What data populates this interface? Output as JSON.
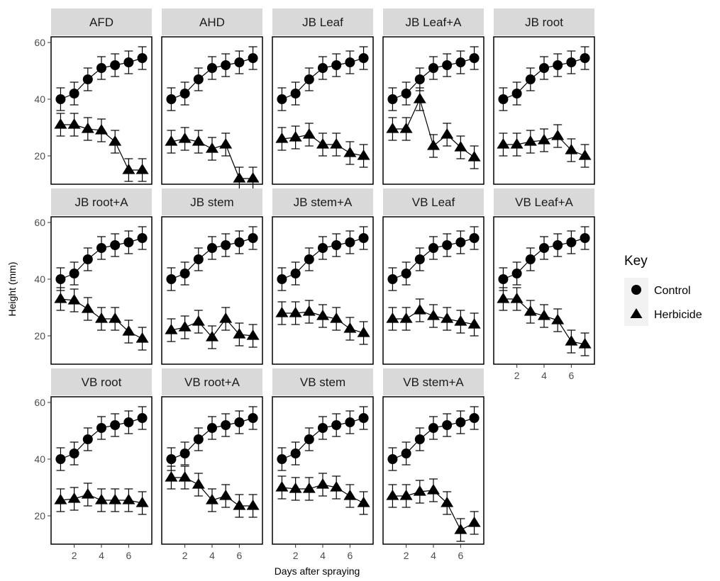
{
  "chart_data": {
    "type": "line",
    "facet_layout": "wrap",
    "xlabel": "Days after spraying",
    "ylabel": "Height (mm)",
    "xlim": [
      0.3,
      7.7
    ],
    "ylim": [
      10,
      62
    ],
    "x_ticks": [
      2,
      4,
      6
    ],
    "y_ticks": [
      20,
      40,
      60
    ],
    "x": [
      1,
      2,
      3,
      4,
      5,
      6,
      7
    ],
    "error_bar": 4,
    "grid": false,
    "legend": {
      "title": "Key",
      "placement": "right",
      "entries": [
        {
          "label": "Control",
          "marker": "circle"
        },
        {
          "label": "Herbicide",
          "marker": "triangle"
        }
      ]
    },
    "control": [
      40,
      42,
      47,
      51,
      52,
      53,
      54.5
    ],
    "panels": [
      {
        "label": "AFD",
        "herbicide": [
          31,
          31,
          29.5,
          29,
          25,
          15,
          15
        ]
      },
      {
        "label": "AHD",
        "herbicide": [
          25,
          26,
          25,
          22.5,
          24,
          12,
          12
        ]
      },
      {
        "label": "JB Leaf",
        "herbicide": [
          26,
          26.5,
          27.5,
          24,
          24,
          21,
          20
        ]
      },
      {
        "label": "JB Leaf+A",
        "herbicide": [
          29.5,
          29.5,
          40,
          23.5,
          27.5,
          23,
          19.5
        ]
      },
      {
        "label": "JB root",
        "herbicide": [
          24,
          24,
          25,
          25.5,
          27,
          22,
          20
        ]
      },
      {
        "label": "JB root+A",
        "herbicide": [
          33,
          32.5,
          29.5,
          26,
          26,
          21.5,
          19
        ]
      },
      {
        "label": "JB stem",
        "herbicide": [
          22,
          23,
          25,
          19.5,
          26,
          20.5,
          20
        ]
      },
      {
        "label": "JB stem+A",
        "herbicide": [
          28,
          28,
          28.5,
          27,
          26,
          22.5,
          21
        ]
      },
      {
        "label": "VB Leaf",
        "herbicide": [
          26,
          26,
          29,
          27,
          26,
          25,
          24
        ]
      },
      {
        "label": "VB Leaf+A",
        "herbicide": [
          33,
          33,
          28.5,
          27,
          25.5,
          18,
          17
        ]
      },
      {
        "label": "VB root",
        "herbicide": [
          25.5,
          26,
          27.5,
          25.5,
          25.5,
          25.5,
          24.5
        ]
      },
      {
        "label": "VB root+A",
        "herbicide": [
          33.5,
          33.5,
          31,
          25.5,
          27,
          23.5,
          23.5
        ]
      },
      {
        "label": "VB stem",
        "herbicide": [
          30,
          29.5,
          29.5,
          31,
          30,
          27,
          24.5
        ]
      },
      {
        "label": "VB stem+A",
        "herbicide": [
          27,
          27,
          28.5,
          29,
          24.5,
          15,
          17.5
        ]
      }
    ]
  }
}
